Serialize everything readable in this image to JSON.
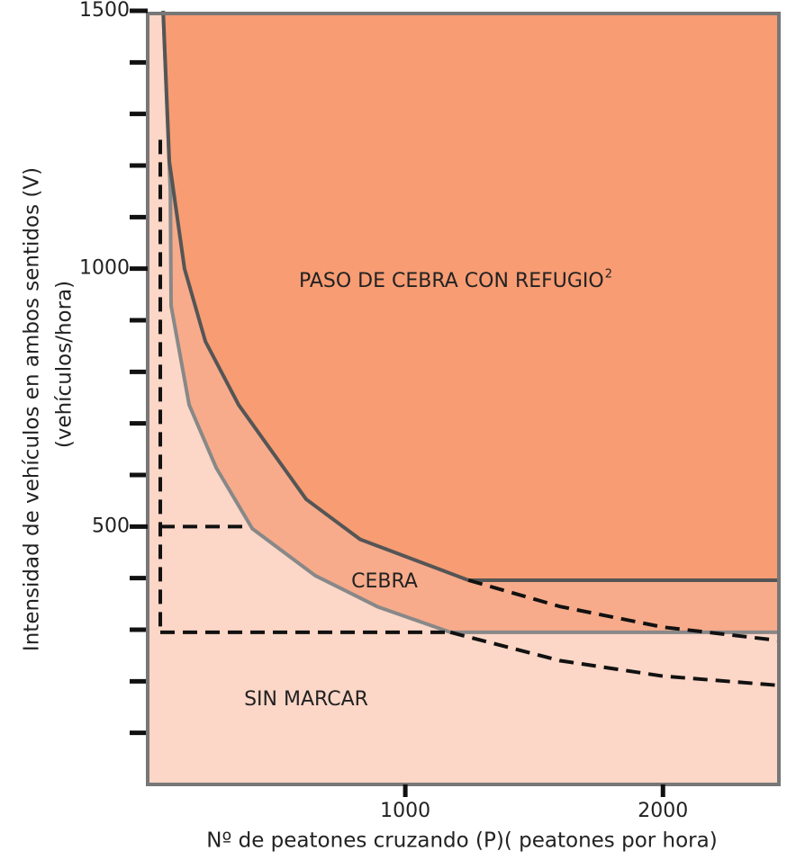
{
  "chart_data": {
    "type": "region",
    "xlabel": "Nº de peatones cruzando (P)( peatones por hora)",
    "ylabel": [
      "Intensidad de vehículos en ambos sentidos (V)",
      "(vehículos/hora)"
    ],
    "xlim": [
      0,
      2450
    ],
    "ylim": [
      0,
      1500
    ],
    "xticks": [
      1000,
      2000
    ],
    "yticks": [
      500,
      1000,
      1500
    ],
    "yminorticks": [
      100,
      200,
      300,
      400,
      600,
      700,
      800,
      900,
      1100,
      1200,
      1300,
      1400
    ],
    "regions": [
      {
        "label": "SIN MARCAR",
        "color": "#fcd6c6"
      },
      {
        "label": "CEBRA",
        "color": "#f7ab8b"
      },
      {
        "label": "PASO DE CEBRA CON REFUGIO",
        "sup": "2",
        "color": "#f79c73"
      }
    ],
    "boundaries": [
      {
        "color": "#888888",
        "x": [
          60,
          88,
          91,
          161,
          266,
          406,
          650,
          895,
          1175,
          2450
        ],
        "values": [
          1500,
          1150,
          928,
          736,
          614,
          496,
          405,
          344,
          295,
          295
        ]
      },
      {
        "color": "#555555",
        "x": [
          60,
          84,
          143,
          224,
          353,
          615,
          825,
          1245,
          2450
        ],
        "values": [
          1500,
          1208,
          1000,
          859,
          736,
          553,
          475,
          396,
          396
        ]
      }
    ],
    "dashed": [
      {
        "x": [
          1245,
          1600,
          2000,
          2450
        ],
        "values": [
          396,
          345,
          305,
          279
        ]
      },
      {
        "x": [
          1175,
          1600,
          2000,
          2450
        ],
        "values": [
          295,
          240,
          210,
          192
        ]
      },
      {
        "x": [
          49,
          49
        ],
        "values": [
          1250,
          295
        ]
      },
      {
        "x": [
          49,
          385
        ],
        "values": [
          500,
          500
        ]
      },
      {
        "x": [
          49,
          1175
        ],
        "values": [
          295,
          295
        ]
      }
    ]
  }
}
